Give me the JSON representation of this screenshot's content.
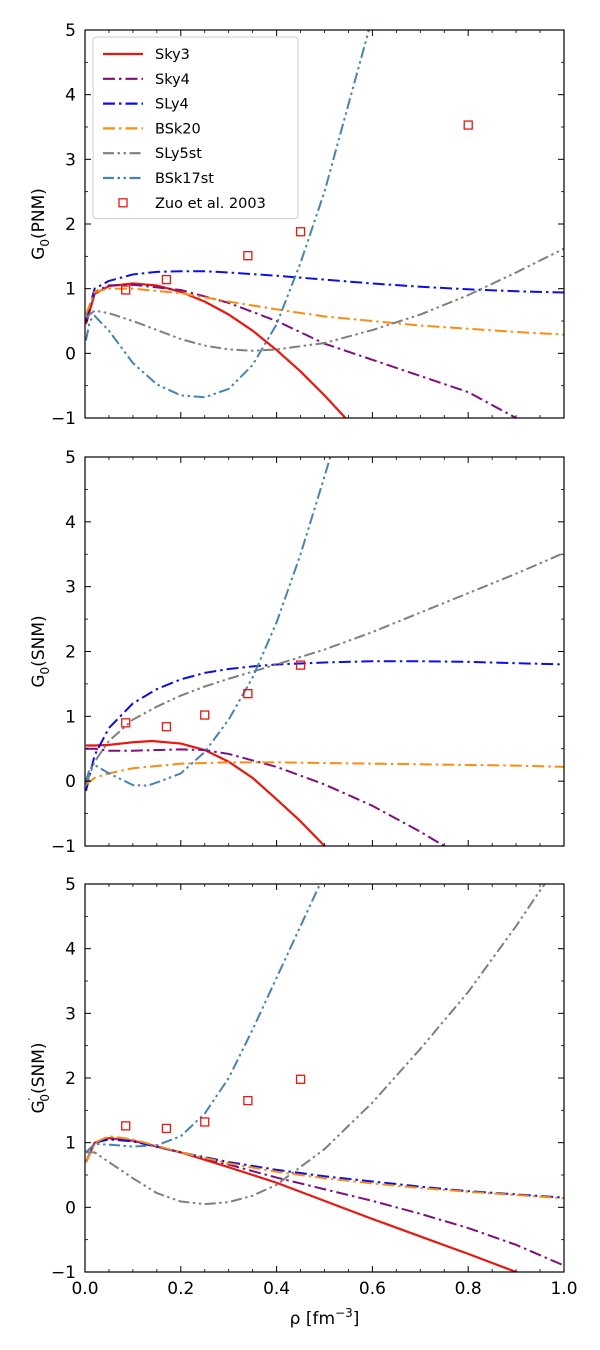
{
  "chart_data": [
    {
      "type": "line",
      "panel": "top",
      "ylabel": "G",
      "ylabel_sub": "0",
      "ylabel_rest": "(PNM)",
      "xlabel": "",
      "xlim": [
        0.0,
        1.0
      ],
      "ylim": [
        -1,
        5
      ],
      "xticks": [
        0.0,
        0.2,
        0.4,
        0.6,
        0.8,
        1.0
      ],
      "yticks": [
        -1,
        0,
        1,
        2,
        3,
        4,
        5
      ],
      "show_x_tick_labels": false,
      "legend": "upper-left",
      "series": [
        {
          "name": "Sky3",
          "color": "#e8170f",
          "dash": "solid",
          "x": [
            0.002,
            0.02,
            0.05,
            0.1,
            0.15,
            0.2,
            0.25,
            0.3,
            0.35,
            0.4,
            0.45,
            0.5,
            0.55,
            0.6
          ],
          "y": [
            0.45,
            0.92,
            1.04,
            1.08,
            1.05,
            0.95,
            0.8,
            0.6,
            0.35,
            0.05,
            -0.28,
            -0.65,
            -1.05,
            -1.5
          ]
        },
        {
          "name": "Sky4",
          "color": "#7f0f7e",
          "dash": "dashdot",
          "x": [
            0.002,
            0.02,
            0.05,
            0.1,
            0.2,
            0.3,
            0.4,
            0.5,
            0.6,
            0.7,
            0.8,
            0.9,
            0.95
          ],
          "y": [
            0.5,
            0.95,
            1.05,
            1.06,
            0.98,
            0.78,
            0.5,
            0.15,
            -0.1,
            -0.35,
            -0.6,
            -1.0,
            -1.2
          ]
        },
        {
          "name": "SLy4",
          "color": "#0c10e0",
          "dash": "dashdot",
          "x": [
            0.002,
            0.02,
            0.05,
            0.1,
            0.15,
            0.2,
            0.25,
            0.3,
            0.4,
            0.5,
            0.6,
            0.7,
            0.8,
            0.9,
            1.0
          ],
          "y": [
            0.5,
            1.0,
            1.12,
            1.22,
            1.26,
            1.27,
            1.27,
            1.25,
            1.2,
            1.14,
            1.08,
            1.03,
            0.99,
            0.96,
            0.94
          ]
        },
        {
          "name": "BSk20",
          "color": "#fb8c11",
          "dash": "dashdot",
          "x": [
            0.002,
            0.02,
            0.05,
            0.1,
            0.2,
            0.3,
            0.4,
            0.5,
            0.6,
            0.7,
            0.8,
            0.9,
            1.0
          ],
          "y": [
            0.6,
            0.95,
            1.0,
            1.0,
            0.93,
            0.8,
            0.68,
            0.57,
            0.5,
            0.43,
            0.38,
            0.33,
            0.29
          ]
        },
        {
          "name": "SLy5st",
          "color": "#7f7f7f",
          "dash": "dashdotdot",
          "x": [
            0.002,
            0.02,
            0.05,
            0.1,
            0.15,
            0.2,
            0.25,
            0.3,
            0.35,
            0.4,
            0.5,
            0.6,
            0.7,
            0.8,
            0.9,
            1.0
          ],
          "y": [
            0.55,
            0.66,
            0.62,
            0.5,
            0.36,
            0.22,
            0.12,
            0.06,
            0.04,
            0.06,
            0.16,
            0.36,
            0.6,
            0.9,
            1.25,
            1.62
          ]
        },
        {
          "name": "BSk17st",
          "color": "#4682b4",
          "dash": "dashdotdot",
          "x": [
            0.002,
            0.01,
            0.02,
            0.05,
            0.1,
            0.15,
            0.2,
            0.25,
            0.3,
            0.35,
            0.4,
            0.45,
            0.5,
            0.55,
            0.6
          ],
          "y": [
            0.2,
            0.5,
            0.58,
            0.35,
            -0.15,
            -0.48,
            -0.65,
            -0.68,
            -0.55,
            -0.18,
            0.45,
            1.4,
            2.5,
            3.85,
            5.2
          ]
        }
      ],
      "points": {
        "name": "Zuo et al. 2003",
        "color": "#e8170f",
        "x": [
          0.085,
          0.17,
          0.34,
          0.45,
          0.8
        ],
        "y": [
          0.98,
          1.14,
          1.51,
          1.88,
          3.53
        ]
      }
    },
    {
      "type": "line",
      "panel": "middle",
      "ylabel": "G",
      "ylabel_sub": "0",
      "ylabel_rest": "(SNM)",
      "xlabel": "",
      "xlim": [
        0.0,
        1.0
      ],
      "ylim": [
        -1,
        5
      ],
      "xticks": [
        0.0,
        0.2,
        0.4,
        0.6,
        0.8,
        1.0
      ],
      "yticks": [
        -1,
        0,
        1,
        2,
        3,
        4,
        5
      ],
      "show_x_tick_labels": false,
      "series": [
        {
          "name": "Sky3",
          "color": "#e8170f",
          "dash": "solid",
          "x": [
            0.002,
            0.02,
            0.05,
            0.1,
            0.14,
            0.2,
            0.25,
            0.3,
            0.35,
            0.4,
            0.45,
            0.5,
            0.55
          ],
          "y": [
            0.55,
            0.55,
            0.56,
            0.6,
            0.62,
            0.58,
            0.48,
            0.3,
            0.05,
            -0.28,
            -0.62,
            -1.0,
            -1.4
          ]
        },
        {
          "name": "Sky4",
          "color": "#7f0f7e",
          "dash": "dashdot",
          "x": [
            0.002,
            0.02,
            0.05,
            0.1,
            0.2,
            0.25,
            0.3,
            0.4,
            0.5,
            0.6,
            0.7,
            0.75,
            0.8
          ],
          "y": [
            0.5,
            0.5,
            0.47,
            0.47,
            0.49,
            0.48,
            0.42,
            0.22,
            -0.05,
            -0.38,
            -0.78,
            -1.0,
            -1.25
          ]
        },
        {
          "name": "SLy4",
          "color": "#0c10e0",
          "dash": "dashdot",
          "x": [
            0.002,
            0.02,
            0.05,
            0.1,
            0.15,
            0.2,
            0.25,
            0.3,
            0.35,
            0.4,
            0.5,
            0.6,
            0.7,
            0.8,
            0.9,
            1.0
          ],
          "y": [
            -0.15,
            0.4,
            0.82,
            1.2,
            1.42,
            1.57,
            1.67,
            1.73,
            1.77,
            1.8,
            1.83,
            1.85,
            1.85,
            1.84,
            1.82,
            1.8
          ]
        },
        {
          "name": "BSk20",
          "color": "#fb8c11",
          "dash": "dashdot",
          "x": [
            0.002,
            0.02,
            0.05,
            0.1,
            0.2,
            0.3,
            0.4,
            0.5,
            0.6,
            0.7,
            0.8,
            0.9,
            1.0
          ],
          "y": [
            -0.05,
            0.05,
            0.12,
            0.2,
            0.27,
            0.29,
            0.29,
            0.28,
            0.27,
            0.26,
            0.25,
            0.24,
            0.22
          ]
        },
        {
          "name": "SLy5st",
          "color": "#7f7f7f",
          "dash": "dashdotdot",
          "x": [
            0.002,
            0.02,
            0.05,
            0.1,
            0.15,
            0.2,
            0.25,
            0.3,
            0.4,
            0.5,
            0.6,
            0.7,
            0.8,
            0.9,
            1.0
          ],
          "y": [
            -0.05,
            0.3,
            0.62,
            0.95,
            1.15,
            1.32,
            1.46,
            1.58,
            1.8,
            2.03,
            2.3,
            2.6,
            2.9,
            3.2,
            3.52
          ]
        },
        {
          "name": "BSk17st",
          "color": "#4682b4",
          "dash": "dashdotdot",
          "x": [
            0.002,
            0.01,
            0.02,
            0.05,
            0.1,
            0.13,
            0.15,
            0.2,
            0.25,
            0.3,
            0.35,
            0.4,
            0.45,
            0.5,
            0.52
          ],
          "y": [
            0.0,
            0.2,
            0.25,
            0.12,
            -0.06,
            -0.07,
            -0.02,
            0.12,
            0.45,
            0.95,
            1.6,
            2.45,
            3.5,
            4.7,
            5.2
          ]
        }
      ],
      "points": {
        "name": "Zuo et al. 2003",
        "color": "#e8170f",
        "x": [
          0.085,
          0.17,
          0.25,
          0.34,
          0.45
        ],
        "y": [
          0.9,
          0.84,
          1.02,
          1.35,
          1.79
        ]
      }
    },
    {
      "type": "line",
      "panel": "bottom",
      "ylabel": "G",
      "ylabel_sub": "0",
      "ylabel_sup": "′",
      "ylabel_rest": "(SNM)",
      "xlabel": "ρ [fm",
      "xlabel_sup": "−3",
      "xlabel_end": "]",
      "xlim": [
        0.0,
        1.0
      ],
      "ylim": [
        -1,
        5
      ],
      "xticks": [
        0.0,
        0.2,
        0.4,
        0.6,
        0.8,
        1.0
      ],
      "xtick_labels": [
        "0.0",
        "0.2",
        "0.4",
        "0.6",
        "0.8",
        "1.0"
      ],
      "yticks": [
        -1,
        0,
        1,
        2,
        3,
        4,
        5
      ],
      "show_x_tick_labels": true,
      "series": [
        {
          "name": "Sky3",
          "color": "#e8170f",
          "dash": "solid",
          "x": [
            0.002,
            0.02,
            0.05,
            0.1,
            0.2,
            0.3,
            0.4,
            0.5,
            0.6,
            0.7,
            0.8,
            0.9,
            0.92
          ],
          "y": [
            0.7,
            1.0,
            1.07,
            1.03,
            0.85,
            0.62,
            0.38,
            0.1,
            -0.18,
            -0.45,
            -0.72,
            -1.0,
            -1.06
          ]
        },
        {
          "name": "Sky4",
          "color": "#7f0f7e",
          "dash": "dashdot",
          "x": [
            0.002,
            0.02,
            0.05,
            0.1,
            0.2,
            0.3,
            0.4,
            0.5,
            0.6,
            0.7,
            0.8,
            0.9,
            1.0
          ],
          "y": [
            0.7,
            1.0,
            1.06,
            1.03,
            0.85,
            0.66,
            0.46,
            0.28,
            0.1,
            -0.1,
            -0.32,
            -0.58,
            -0.9
          ]
        },
        {
          "name": "SLy4",
          "color": "#0c10e0",
          "dash": "dashdot",
          "x": [
            0.002,
            0.02,
            0.05,
            0.1,
            0.2,
            0.3,
            0.4,
            0.5,
            0.6,
            0.7,
            0.8,
            0.9,
            1.0
          ],
          "y": [
            0.7,
            1.0,
            1.05,
            1.02,
            0.85,
            0.7,
            0.58,
            0.48,
            0.4,
            0.32,
            0.25,
            0.2,
            0.15
          ]
        },
        {
          "name": "BSk20",
          "color": "#fb8c11",
          "dash": "dashdot",
          "x": [
            0.002,
            0.02,
            0.05,
            0.1,
            0.2,
            0.3,
            0.4,
            0.5,
            0.6,
            0.7,
            0.8,
            0.9,
            1.0
          ],
          "y": [
            0.7,
            1.0,
            1.1,
            1.05,
            0.85,
            0.68,
            0.55,
            0.45,
            0.37,
            0.3,
            0.24,
            0.19,
            0.14
          ]
        },
        {
          "name": "SLy5st",
          "color": "#7f7f7f",
          "dash": "dashdotdot",
          "x": [
            0.002,
            0.02,
            0.05,
            0.1,
            0.15,
            0.2,
            0.25,
            0.3,
            0.35,
            0.4,
            0.5,
            0.6,
            0.7,
            0.8,
            0.9,
            0.95,
            1.0
          ],
          "y": [
            0.85,
            0.85,
            0.7,
            0.45,
            0.22,
            0.09,
            0.05,
            0.08,
            0.18,
            0.35,
            0.9,
            1.62,
            2.45,
            3.33,
            4.35,
            4.9,
            5.4
          ]
        },
        {
          "name": "BSk17st",
          "color": "#4682b4",
          "dash": "dashdotdot",
          "x": [
            0.002,
            0.02,
            0.05,
            0.1,
            0.15,
            0.2,
            0.25,
            0.3,
            0.35,
            0.4,
            0.45,
            0.5,
            0.52
          ],
          "y": [
            0.85,
            0.98,
            0.97,
            0.94,
            0.96,
            1.1,
            1.45,
            2.0,
            2.75,
            3.55,
            4.35,
            5.15,
            5.5
          ]
        }
      ],
      "points": {
        "name": "Zuo et al. 2003",
        "color": "#e8170f",
        "x": [
          0.085,
          0.17,
          0.25,
          0.34,
          0.45
        ],
        "y": [
          1.26,
          1.22,
          1.32,
          1.65,
          1.98
        ]
      }
    }
  ]
}
